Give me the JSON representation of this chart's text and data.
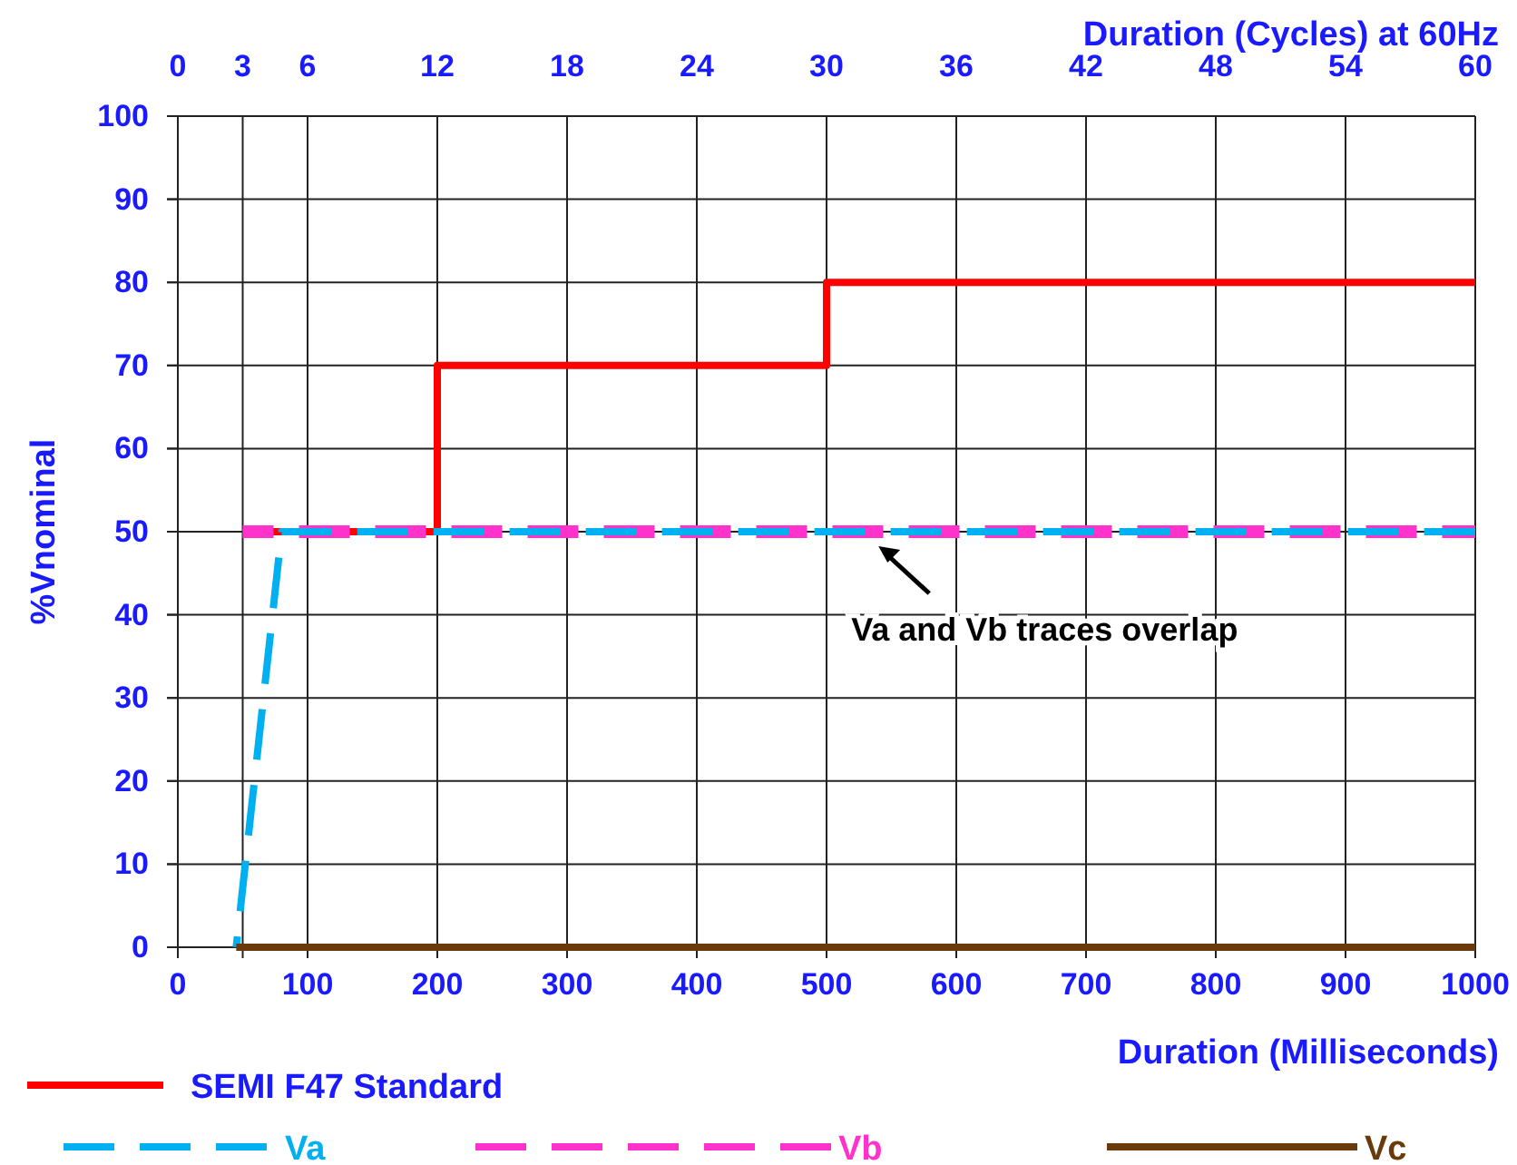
{
  "chart_data": {
    "type": "line",
    "xlabel": "Duration (Milliseconds)",
    "x2label": "Duration (Cycles) at 60Hz",
    "ylabel": "%Vnominal",
    "xlim": [
      0,
      1000
    ],
    "xticks": [
      0,
      100,
      200,
      300,
      400,
      500,
      600,
      700,
      800,
      900,
      1000
    ],
    "x2lim": [
      0,
      60
    ],
    "x2ticks": [
      0,
      3,
      6,
      12,
      18,
      24,
      30,
      36,
      42,
      48,
      54,
      60
    ],
    "ylim": [
      0,
      100
    ],
    "yticks": [
      0,
      10,
      20,
      30,
      40,
      50,
      60,
      70,
      80,
      90,
      100
    ],
    "grid": true,
    "legend": "bottom",
    "series": [
      {
        "name": "SEMI F47 Standard",
        "color": "#ff0000",
        "line_style": "solid",
        "x": [
          50,
          200,
          200,
          500,
          500,
          1000
        ],
        "values": [
          50,
          50,
          70,
          70,
          80,
          80
        ]
      },
      {
        "name": "Vb",
        "color": "#ff33cc",
        "line_style": "dashed",
        "x": [
          50,
          1000
        ],
        "values": [
          50,
          50
        ]
      },
      {
        "name": "Va",
        "color": "#00b0f0",
        "line_style": "dashed",
        "x": [
          45,
          80,
          1000
        ],
        "values": [
          0,
          50,
          50
        ]
      },
      {
        "name": "Vc",
        "color": "#6b3a0a",
        "line_style": "solid",
        "x": [
          45,
          1000
        ],
        "values": [
          0,
          0
        ]
      }
    ],
    "annotations": [
      {
        "text": "Va and Vb traces overlap",
        "x": 540,
        "y": 50
      }
    ]
  }
}
